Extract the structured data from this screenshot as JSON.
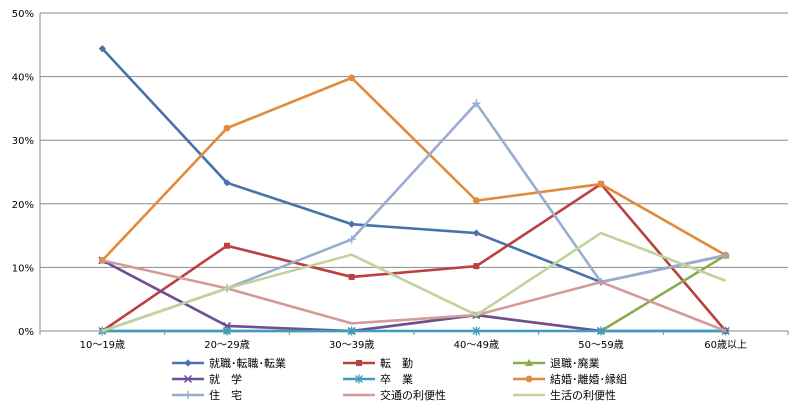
{
  "chart_data": {
    "type": "line",
    "title": "",
    "xlabel": "",
    "ylabel": "",
    "categories": [
      "10～19歳",
      "20～29歳",
      "30～39歳",
      "40～49歳",
      "50～59歳",
      "60歳以上"
    ],
    "yticks": [
      "0%",
      "10%",
      "20%",
      "30%",
      "40%",
      "50%"
    ],
    "ylim": [
      0,
      50
    ],
    "grid": "horizontal",
    "legend_position": "bottom",
    "series": [
      {
        "name": "就職･転職･転業",
        "values": [
          44.4,
          23.3,
          16.8,
          15.4,
          7.7,
          11.9
        ],
        "color": "#4a72aa",
        "marker": "diamond"
      },
      {
        "name": "転　勤",
        "values": [
          0,
          13.4,
          8.5,
          10.2,
          23.1,
          0
        ],
        "color": "#b9413f",
        "marker": "square"
      },
      {
        "name": "退職･廃業",
        "values": [
          0,
          0,
          0,
          2.5,
          0,
          11.9
        ],
        "color": "#8bab4a",
        "marker": "triangle"
      },
      {
        "name": "就　学",
        "values": [
          11.1,
          0.8,
          0,
          2.5,
          0,
          0
        ],
        "color": "#6f4f93",
        "marker": "x"
      },
      {
        "name": "卒　業",
        "values": [
          0,
          0,
          0,
          0,
          0,
          0
        ],
        "color": "#3d9dbf",
        "marker": "asterisk"
      },
      {
        "name": "結婚･離婚･縁組",
        "values": [
          11.1,
          31.9,
          39.8,
          20.5,
          23.1,
          11.9
        ],
        "color": "#e08a3c",
        "marker": "circle"
      },
      {
        "name": "住　宅",
        "values": [
          0,
          6.7,
          14.4,
          35.8,
          7.7,
          11.9
        ],
        "color": "#99aecf",
        "marker": "plus"
      },
      {
        "name": "交通の利便性",
        "values": [
          11.1,
          6.7,
          1.2,
          2.5,
          7.7,
          0
        ],
        "color": "#d49a9a",
        "marker": "none"
      },
      {
        "name": "生活の利便性",
        "values": [
          0,
          6.7,
          12.0,
          2.5,
          15.4,
          7.9
        ],
        "color": "#bfd39a",
        "marker": "none"
      }
    ]
  }
}
